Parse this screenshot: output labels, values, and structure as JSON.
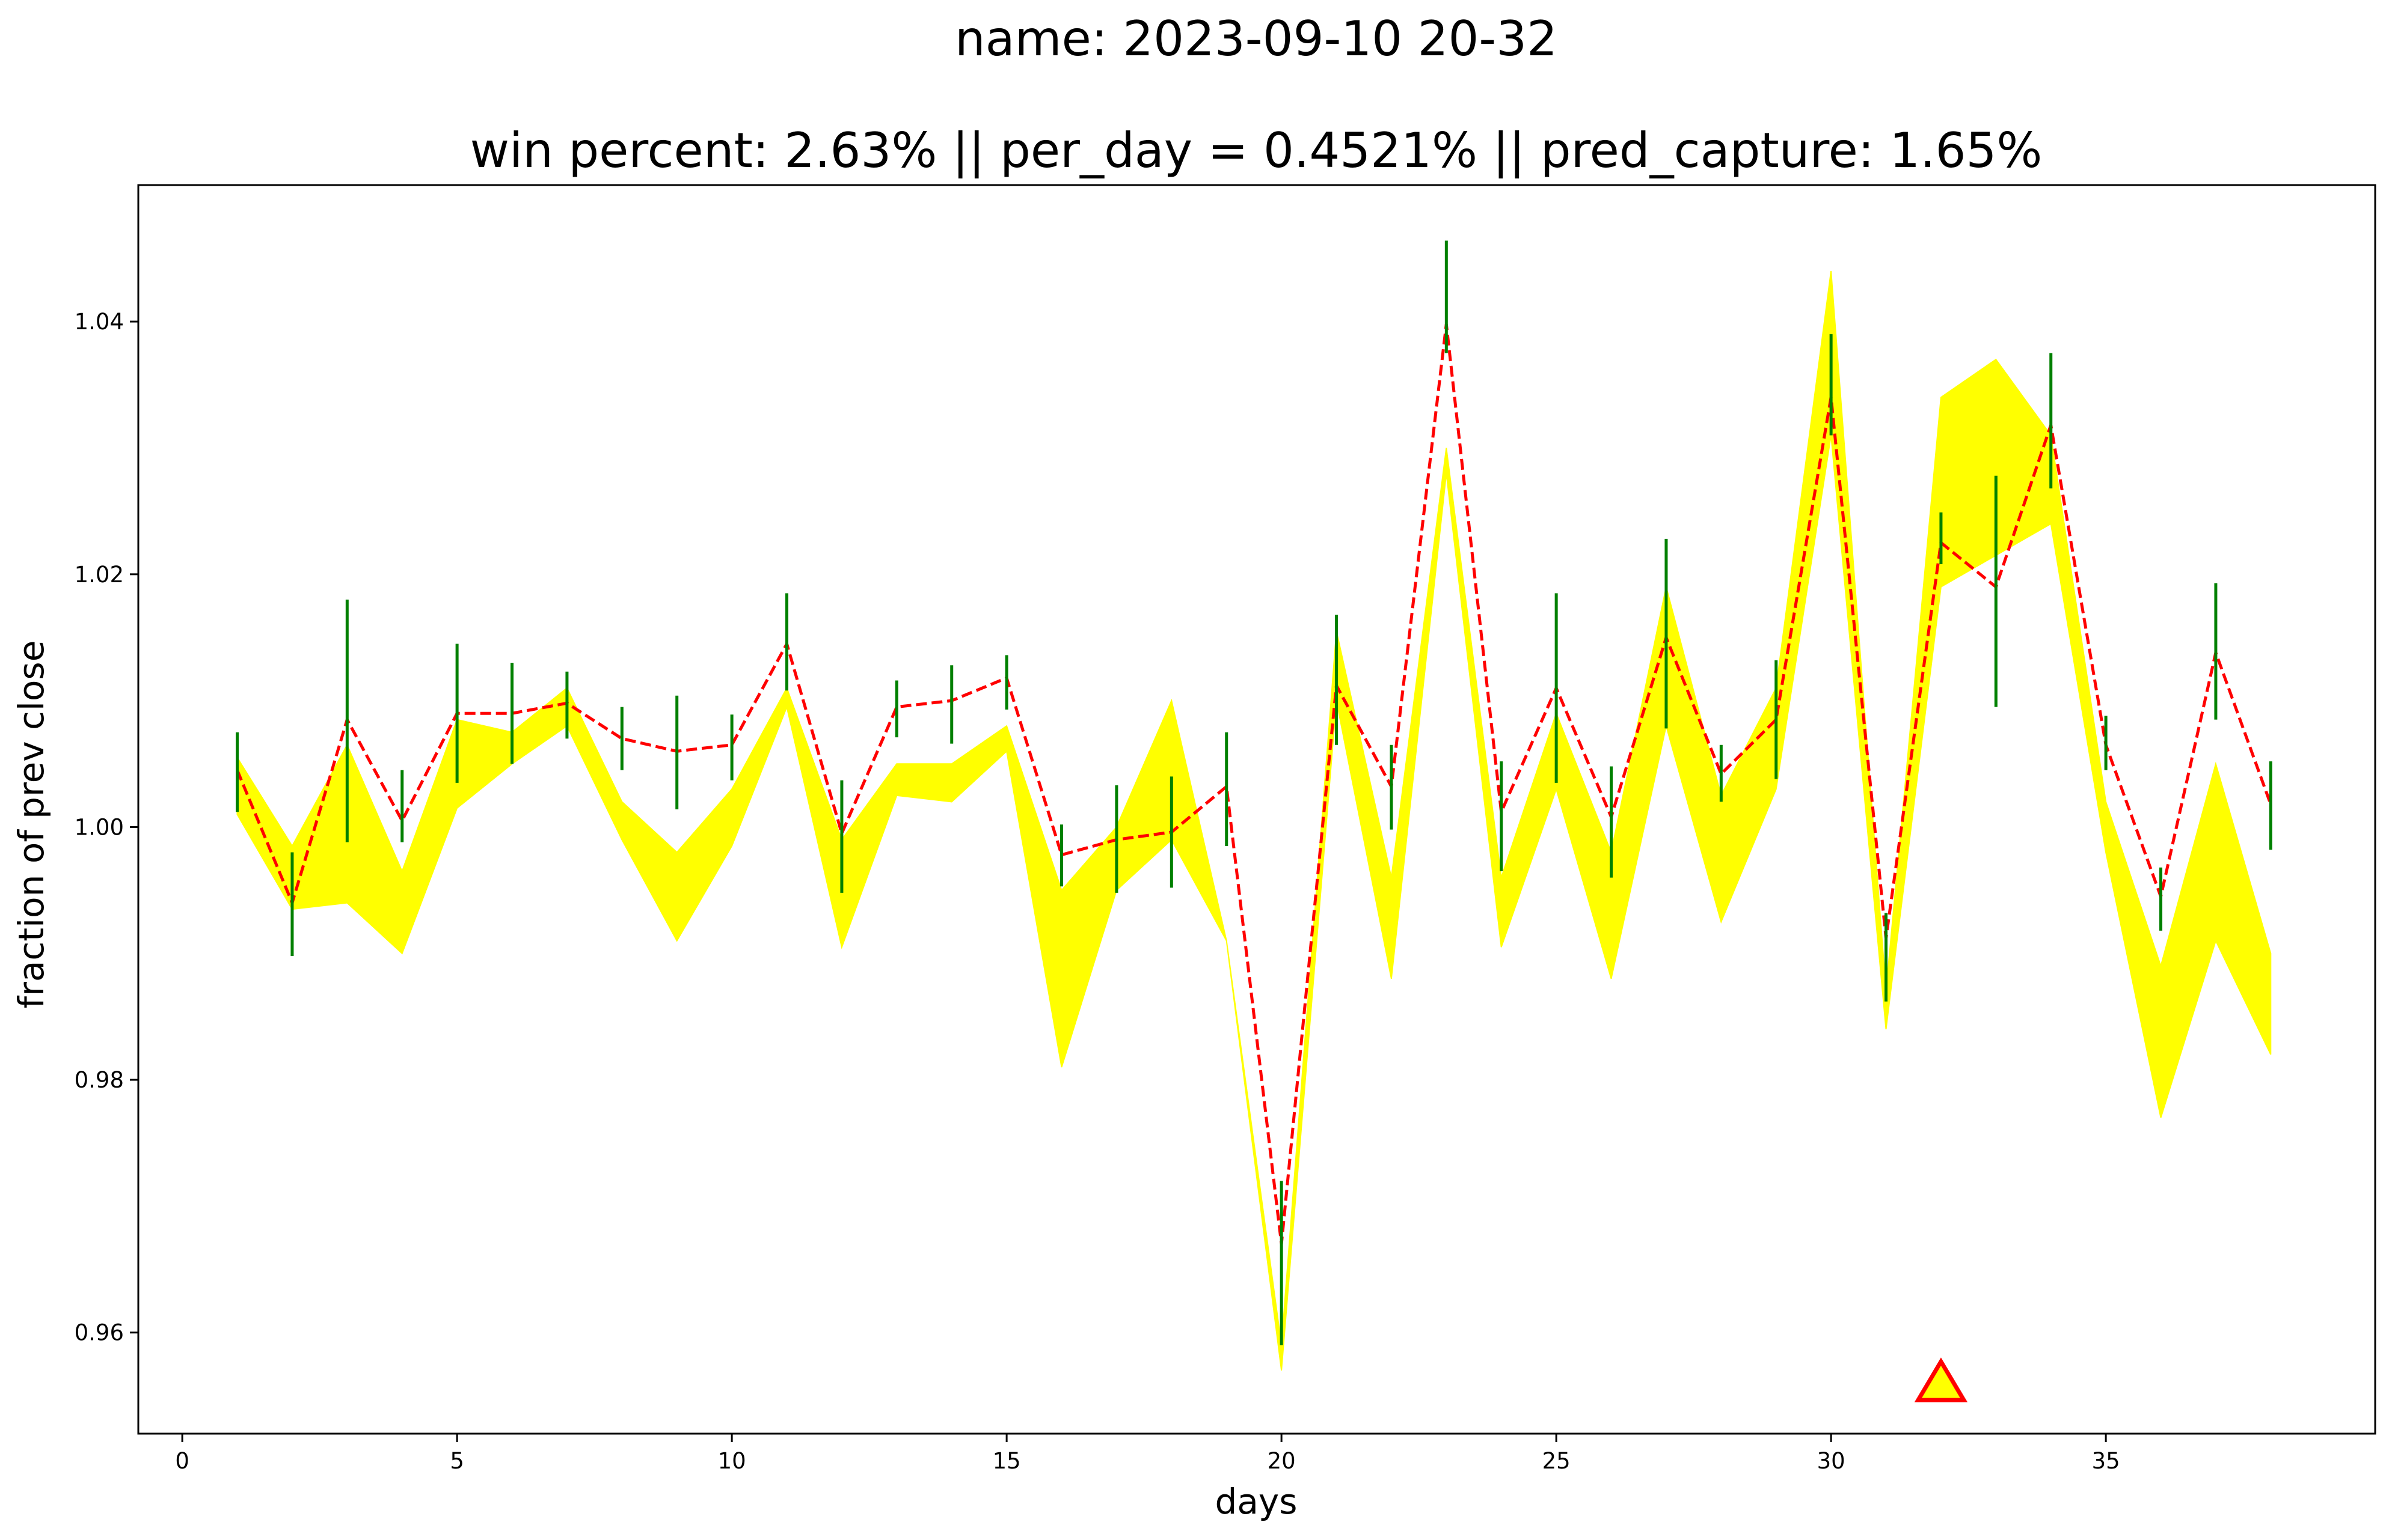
{
  "chart_data": {
    "type": "line",
    "title": "name: 2023-09-10 20-32",
    "subtitle": "win percent: 2.63%  || per_day = 0.4521% || pred_capture: 1.65%",
    "xlabel": "days",
    "ylabel": "fraction of prev close",
    "xlim": [
      -0.8,
      39.9
    ],
    "ylim": [
      0.952,
      1.0508
    ],
    "xticks": [
      {
        "value": 0,
        "label": "0"
      },
      {
        "value": 5,
        "label": "5"
      },
      {
        "value": 10,
        "label": "10"
      },
      {
        "value": 15,
        "label": "15"
      },
      {
        "value": 20,
        "label": "20"
      },
      {
        "value": 25,
        "label": "25"
      },
      {
        "value": 30,
        "label": "30"
      },
      {
        "value": 35,
        "label": "35"
      }
    ],
    "yticks": [
      {
        "value": 0.96,
        "label": "0.96"
      },
      {
        "value": 0.98,
        "label": "0.98"
      },
      {
        "value": 1.0,
        "label": "1.00"
      },
      {
        "value": 1.02,
        "label": "1.02"
      },
      {
        "value": 1.04,
        "label": "1.04"
      }
    ],
    "grid": false,
    "colors": {
      "band": "#ffff00",
      "line": "#ff0000",
      "bars": "#008000",
      "marker_fill": "#ffff00",
      "marker_edge": "#ff0000"
    },
    "x": [
      1,
      2,
      3,
      4,
      5,
      6,
      7,
      8,
      9,
      10,
      11,
      12,
      13,
      14,
      15,
      16,
      17,
      18,
      19,
      20,
      21,
      22,
      23,
      24,
      25,
      26,
      27,
      28,
      29,
      30,
      31,
      32,
      33,
      34,
      35,
      36,
      37,
      38
    ],
    "band_upper": [
      1.0055,
      0.9985,
      1.0065,
      0.9965,
      1.0085,
      1.0075,
      1.011,
      1.002,
      0.998,
      1.003,
      1.011,
      0.999,
      1.005,
      1.005,
      1.008,
      0.995,
      1.0,
      1.01,
      0.991,
      0.959,
      1.0155,
      0.996,
      1.03,
      0.996,
      1.009,
      0.998,
      1.019,
      1.0025,
      1.011,
      1.044,
      0.987,
      1.034,
      1.037,
      1.031,
      1.002,
      0.989,
      1.005,
      0.99
    ],
    "band_lower": [
      1.001,
      0.9935,
      0.994,
      0.99,
      1.0015,
      1.005,
      1.008,
      0.999,
      0.991,
      0.9985,
      1.0095,
      0.9905,
      1.0025,
      1.002,
      1.006,
      0.981,
      0.995,
      0.999,
      0.991,
      0.957,
      1.01,
      0.988,
      1.028,
      0.9905,
      1.003,
      0.988,
      1.008,
      0.9925,
      1.003,
      1.031,
      0.984,
      1.019,
      1.0215,
      1.024,
      0.998,
      0.977,
      0.991,
      0.982
    ],
    "pred_line": [
      1.0045,
      0.994,
      1.0085,
      1.0005,
      1.009,
      1.009,
      1.0098,
      1.007,
      1.006,
      1.0065,
      1.0145,
      0.9995,
      1.0095,
      1.01,
      1.0118,
      0.9978,
      0.999,
      0.9996,
      1.0032,
      0.967,
      1.0112,
      1.0032,
      1.0398,
      1.0012,
      1.011,
      1.0008,
      1.015,
      1.0042,
      1.0085,
      1.034,
      0.9912,
      1.0225,
      1.019,
      1.0318,
      1.0065,
      0.9945,
      1.0138,
      1.0018
    ],
    "bars_low": [
      1.0012,
      0.9898,
      0.9988,
      0.9988,
      1.0035,
      1.005,
      1.007,
      1.0045,
      1.0014,
      1.0037,
      1.0108,
      0.9948,
      1.0071,
      1.0066,
      1.0093,
      0.9953,
      0.9948,
      0.9952,
      0.9985,
      0.959,
      1.0065,
      0.9998,
      1.0375,
      0.9965,
      1.0035,
      0.996,
      1.0078,
      1.002,
      1.0038,
      1.031,
      0.9862,
      1.0208,
      1.0095,
      1.0268,
      1.0045,
      0.9918,
      1.0085,
      0.9982
    ],
    "bars_high": [
      1.0075,
      0.998,
      1.018,
      1.0045,
      1.0145,
      1.013,
      1.0123,
      1.0095,
      1.0104,
      1.0089,
      1.0185,
      1.0037,
      1.0116,
      1.0128,
      1.0136,
      1.0002,
      1.0033,
      1.004,
      1.0075,
      0.972,
      1.0168,
      1.0065,
      1.0464,
      1.0052,
      1.0185,
      1.0048,
      1.0228,
      1.0065,
      1.0132,
      1.039,
      0.9932,
      1.0249,
      1.0278,
      1.0375,
      1.0088,
      0.9968,
      1.0193,
      1.0052
    ],
    "marker": {
      "shape": "triangle",
      "x": 32,
      "y": 0.9558
    }
  }
}
